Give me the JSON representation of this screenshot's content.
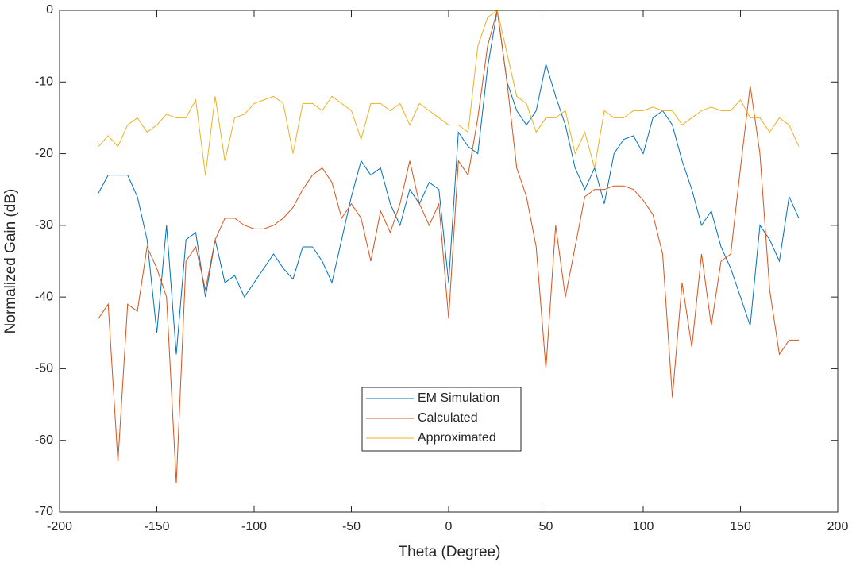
{
  "chart_data": {
    "type": "line",
    "x_label": "Theta (Degree)",
    "y_label": "Normalized Gain (dB)",
    "x": [
      -180,
      -175,
      -170,
      -165,
      -160,
      -155,
      -150,
      -145,
      -140,
      -135,
      -130,
      -125,
      -120,
      -115,
      -110,
      -105,
      -100,
      -95,
      -90,
      -85,
      -80,
      -75,
      -70,
      -65,
      -60,
      -55,
      -50,
      -45,
      -40,
      -35,
      -30,
      -25,
      -20,
      -15,
      -10,
      -5,
      0,
      5,
      10,
      15,
      20,
      25,
      30,
      35,
      40,
      45,
      50,
      55,
      60,
      65,
      70,
      75,
      80,
      85,
      90,
      95,
      100,
      105,
      110,
      115,
      120,
      125,
      130,
      135,
      140,
      145,
      150,
      155,
      160,
      165,
      170,
      175,
      180
    ],
    "series": [
      {
        "name": "EM Simulation",
        "color": "#0072bd",
        "values": [
          -25.5,
          -23,
          -23,
          -23,
          -26,
          -32,
          -45,
          -30,
          -48,
          -32,
          -31,
          -40,
          -32,
          -38,
          -37,
          -40,
          -38,
          -36,
          -34,
          -36,
          -37.5,
          -33,
          -33,
          -35,
          -38,
          -32,
          -26,
          -21,
          -23,
          -22,
          -27,
          -30,
          -25,
          -27,
          -24,
          -25,
          -38,
          -17,
          -19,
          -20,
          -8,
          0,
          -10,
          -14,
          -16,
          -14,
          -7.5,
          -12,
          -16,
          -22,
          -25,
          -22,
          -27,
          -20,
          -18,
          -17.5,
          -20,
          -15,
          -14,
          -16,
          -21,
          -25,
          -30,
          -28,
          -33,
          -36,
          -40,
          -44,
          -30,
          -32,
          -35,
          -26,
          -29
        ]
      },
      {
        "name": "Calculated",
        "color": "#d95319",
        "values": [
          -43,
          -41,
          -63,
          -41,
          -42,
          -33,
          -36,
          -40,
          -66,
          -35,
          -33,
          -39,
          -32,
          -29,
          -29,
          -30,
          -30.5,
          -30.5,
          -30,
          -29,
          -27.5,
          -25,
          -23,
          -22,
          -24,
          -29,
          -27,
          -29,
          -35,
          -28,
          -31,
          -27,
          -21,
          -27,
          -30,
          -27,
          -43,
          -21,
          -23,
          -15,
          -5,
          0,
          -10,
          -22,
          -26,
          -33,
          -50,
          -30,
          -40,
          -33,
          -26,
          -25,
          -25,
          -24.5,
          -24.5,
          -25,
          -26.5,
          -28.5,
          -34,
          -54,
          -38,
          -47,
          -34,
          -44,
          -35,
          -34,
          -22,
          -10.5,
          -20,
          -39,
          -48,
          -46,
          -46
        ]
      },
      {
        "name": "Approximated",
        "color": "#edb120",
        "values": [
          -19,
          -17.5,
          -19,
          -16,
          -15,
          -17,
          -16,
          -14.5,
          -15,
          -15,
          -12.5,
          -23,
          -12,
          -21,
          -15,
          -14.5,
          -13,
          -12.5,
          -12,
          -13,
          -20,
          -13,
          -13,
          -14,
          -12,
          -13,
          -14,
          -18,
          -13,
          -13,
          -14,
          -13,
          -16,
          -13,
          -14,
          -15,
          -16,
          -16,
          -17,
          -5,
          -1,
          0,
          -6,
          -12,
          -13,
          -17,
          -15,
          -15,
          -14,
          -20,
          -17,
          -22,
          -14,
          -15,
          -15,
          -14,
          -14,
          -13.5,
          -14,
          -14,
          -16,
          -15,
          -14,
          -13.5,
          -14,
          -14,
          -12.5,
          -15,
          -15,
          -17,
          -15,
          -16,
          -19
        ]
      }
    ],
    "xlim": [
      -200,
      200
    ],
    "xticks": [
      -200,
      -150,
      -100,
      -50,
      0,
      50,
      100,
      150,
      200
    ],
    "ylim": [
      -70,
      0
    ],
    "yticks": [
      -70,
      -60,
      -50,
      -40,
      -30,
      -20,
      -10,
      0
    ],
    "legend": "bottom-center"
  }
}
